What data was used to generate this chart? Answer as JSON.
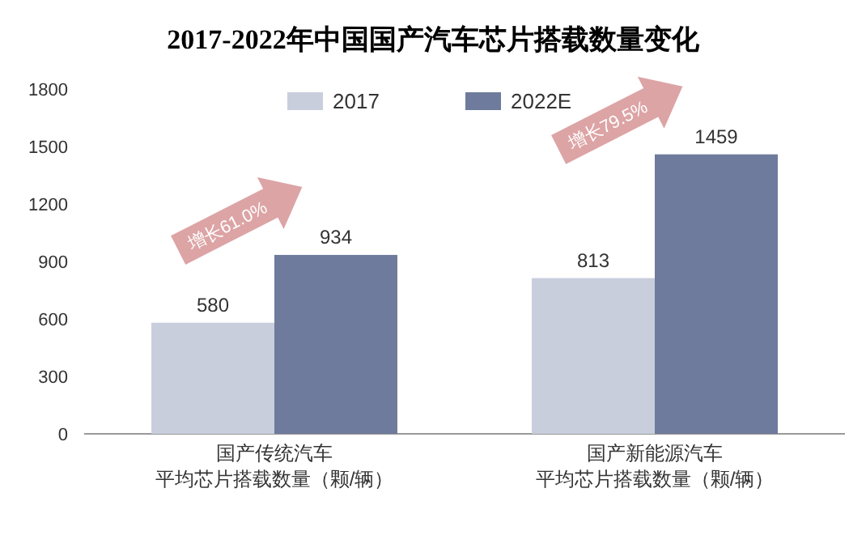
{
  "chart_data": {
    "type": "bar",
    "title": "2017-2022年中国国产汽车芯片搭载数量变化",
    "categories": [
      "国产传统汽车平均芯片搭载数量（颗/辆）",
      "国产新能源汽车平均芯片搭载数量（颗/辆）"
    ],
    "series": [
      {
        "name": "2017",
        "color": "#c9cedd",
        "values": [
          580,
          813
        ]
      },
      {
        "name": "2022E",
        "color": "#6f7b9c",
        "values": [
          934,
          1459
        ]
      }
    ],
    "ylim": [
      0,
      1800
    ],
    "yticks": [
      0,
      300,
      600,
      900,
      1200,
      1500,
      1800
    ],
    "data_labels": true,
    "legend": "top",
    "grid": false,
    "annotations": [
      "增长61.0%",
      "增长79.5%"
    ]
  }
}
